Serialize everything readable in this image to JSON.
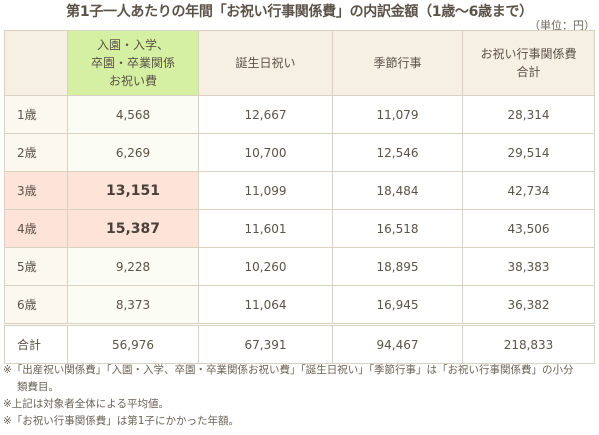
{
  "title": "第1子一人あたりの年間「お祝い行事関係費」の内訳金額（1歳〜6歳まで）",
  "unit": "（単位：円）",
  "table": {
    "headers": [
      "",
      "入園・入学、\n卒園・卒業関係\nお祝い費",
      "誕生日祝い",
      "季節行事",
      "お祝い行事関係費\n合計"
    ],
    "rows": [
      {
        "label": "1歳",
        "cells": [
          "4,568",
          "12,667",
          "11,079",
          "28,314"
        ]
      },
      {
        "label": "2歳",
        "cells": [
          "6,269",
          "10,700",
          "12,546",
          "29,514"
        ]
      },
      {
        "label": "3歳",
        "cells": [
          "13,151",
          "11,099",
          "18,484",
          "42,734"
        ]
      },
      {
        "label": "4歳",
        "cells": [
          "15,387",
          "11,601",
          "16,518",
          "43,506"
        ]
      },
      {
        "label": "5歳",
        "cells": [
          "9,228",
          "10,260",
          "18,895",
          "38,383"
        ]
      },
      {
        "label": "6歳",
        "cells": [
          "8,373",
          "11,064",
          "16,945",
          "36,382"
        ]
      }
    ],
    "total": {
      "label": "合計",
      "cells": [
        "56,976",
        "67,391",
        "94,467",
        "218,833"
      ]
    }
  },
  "notes": [
    "※「出産祝い関係費」「入園・入学、卒園・卒業関係お祝い費」「誕生日祝い」「季節行事」は「お祝い行事関係費」の小分",
    "類費目。",
    "※上記は対象者全体による平均値。",
    "※「お祝い行事関係費」は第1子にかかった年額。"
  ],
  "colors": {
    "header_bg": "#f5f0e2",
    "highlight_header_bg": "#d6f0a3",
    "highlight_row_bg": "#fde3d8",
    "border": "#d9d2c3",
    "text": "#5b5348"
  }
}
